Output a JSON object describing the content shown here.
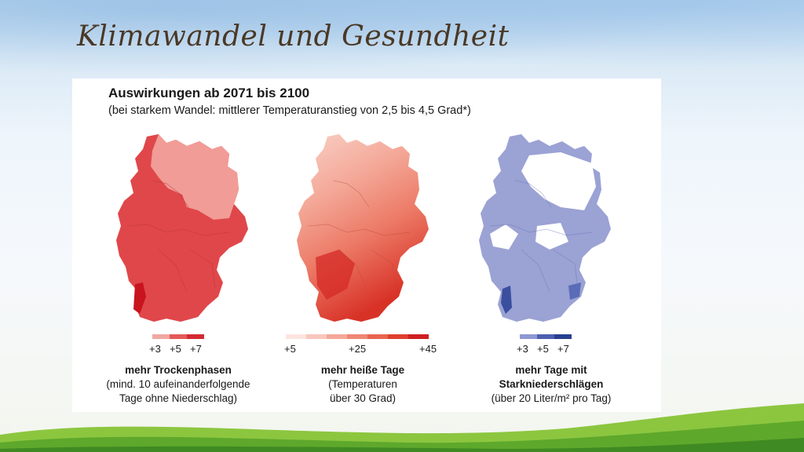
{
  "slide": {
    "title": "Klimawandel und Gesundheit"
  },
  "panel": {
    "heading": "Auswirkungen ab 2071 bis 2100",
    "subheading": "(bei starkem Wandel: mittlerer Temperaturanstieg von 2,5 bis 4,5 Grad*)"
  },
  "maps": [
    {
      "caption_bold": "mehr Trockenphasen",
      "caption_line1": "(mind. 10 aufeinanderfolgende",
      "caption_line2": "Tage ohne Niederschlag)",
      "legend_ticks": [
        "+3",
        "+5",
        "+7"
      ],
      "legend_colors": [
        "#f0a8a2",
        "#e45a5a",
        "#d42a32"
      ],
      "fill_color": "#e0474a"
    },
    {
      "caption_bold": "mehr heiße Tage",
      "caption_line1": "(Temperaturen",
      "caption_line2": "über 30 Grad)",
      "legend_ticks": [
        "+5",
        "+25",
        "+45"
      ],
      "legend_colors": [
        "#fde4df",
        "#f9c7bd",
        "#f4a898",
        "#ee8775",
        "#e8644f",
        "#df3f2e",
        "#cf1f22"
      ],
      "fill_color": "#ee8775"
    },
    {
      "caption_bold": "mehr Tage mit",
      "caption_line1": "Starkniederschlägen",
      "caption_line2": "(über 20 Liter/m² pro Tag)",
      "legend_ticks": [
        "+3",
        "+5",
        "+7"
      ],
      "legend_colors": [
        "#8f98d2",
        "#4d5fb1",
        "#283f91"
      ],
      "fill_color": "#9ba2d4"
    }
  ]
}
